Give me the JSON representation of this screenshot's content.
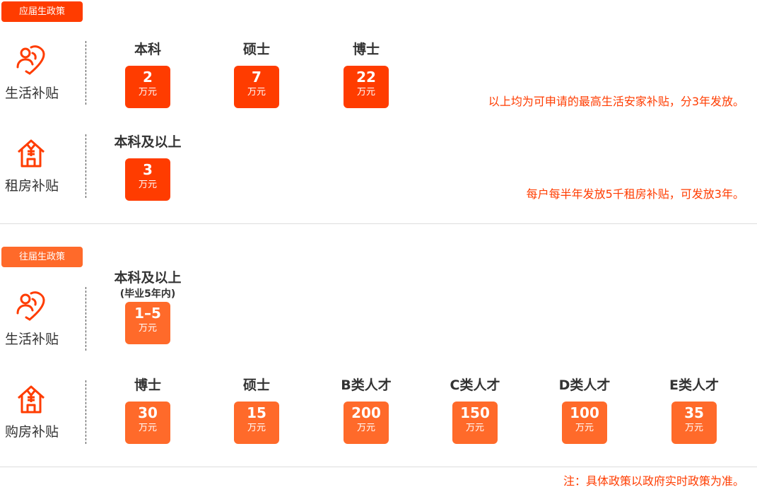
{
  "colors": {
    "current": "#ff3c00",
    "past": "#ff6a2a",
    "note": "#ff3c00"
  },
  "unit": "万元",
  "current": {
    "tag": "应届生政策",
    "living": {
      "label": "生活补贴",
      "icon": "person-heart-icon",
      "note": "以上均为可申请的最高生活安家补贴，分3年发放。",
      "items": [
        {
          "degree": "本科",
          "value": "2"
        },
        {
          "degree": "硕士",
          "value": "7"
        },
        {
          "degree": "博士",
          "value": "22"
        }
      ]
    },
    "rent": {
      "label": "租房补贴",
      "icon": "house-yen-icon",
      "note": "每户每半年发放5千租房补贴，可发放3年。",
      "items": [
        {
          "degree": "本科及以上",
          "value": "3"
        }
      ]
    }
  },
  "past": {
    "tag": "往届生政策",
    "living": {
      "label": "生活补贴",
      "icon": "person-heart-icon",
      "items": [
        {
          "degree": "本科及以上",
          "sub": "(毕业5年内)",
          "value": "1–5"
        }
      ]
    },
    "purchase": {
      "label": "购房补贴",
      "icon": "house-yen-icon",
      "items": [
        {
          "degree": "博士",
          "value": "30"
        },
        {
          "degree": "硕士",
          "value": "15"
        },
        {
          "degree": "B类人才",
          "value": "200"
        },
        {
          "degree": "C类人才",
          "value": "150"
        },
        {
          "degree": "D类人才",
          "value": "100"
        },
        {
          "degree": "E类人才",
          "value": "35"
        }
      ]
    }
  },
  "footnote": "注：具体政策以政府实时政策为准。"
}
